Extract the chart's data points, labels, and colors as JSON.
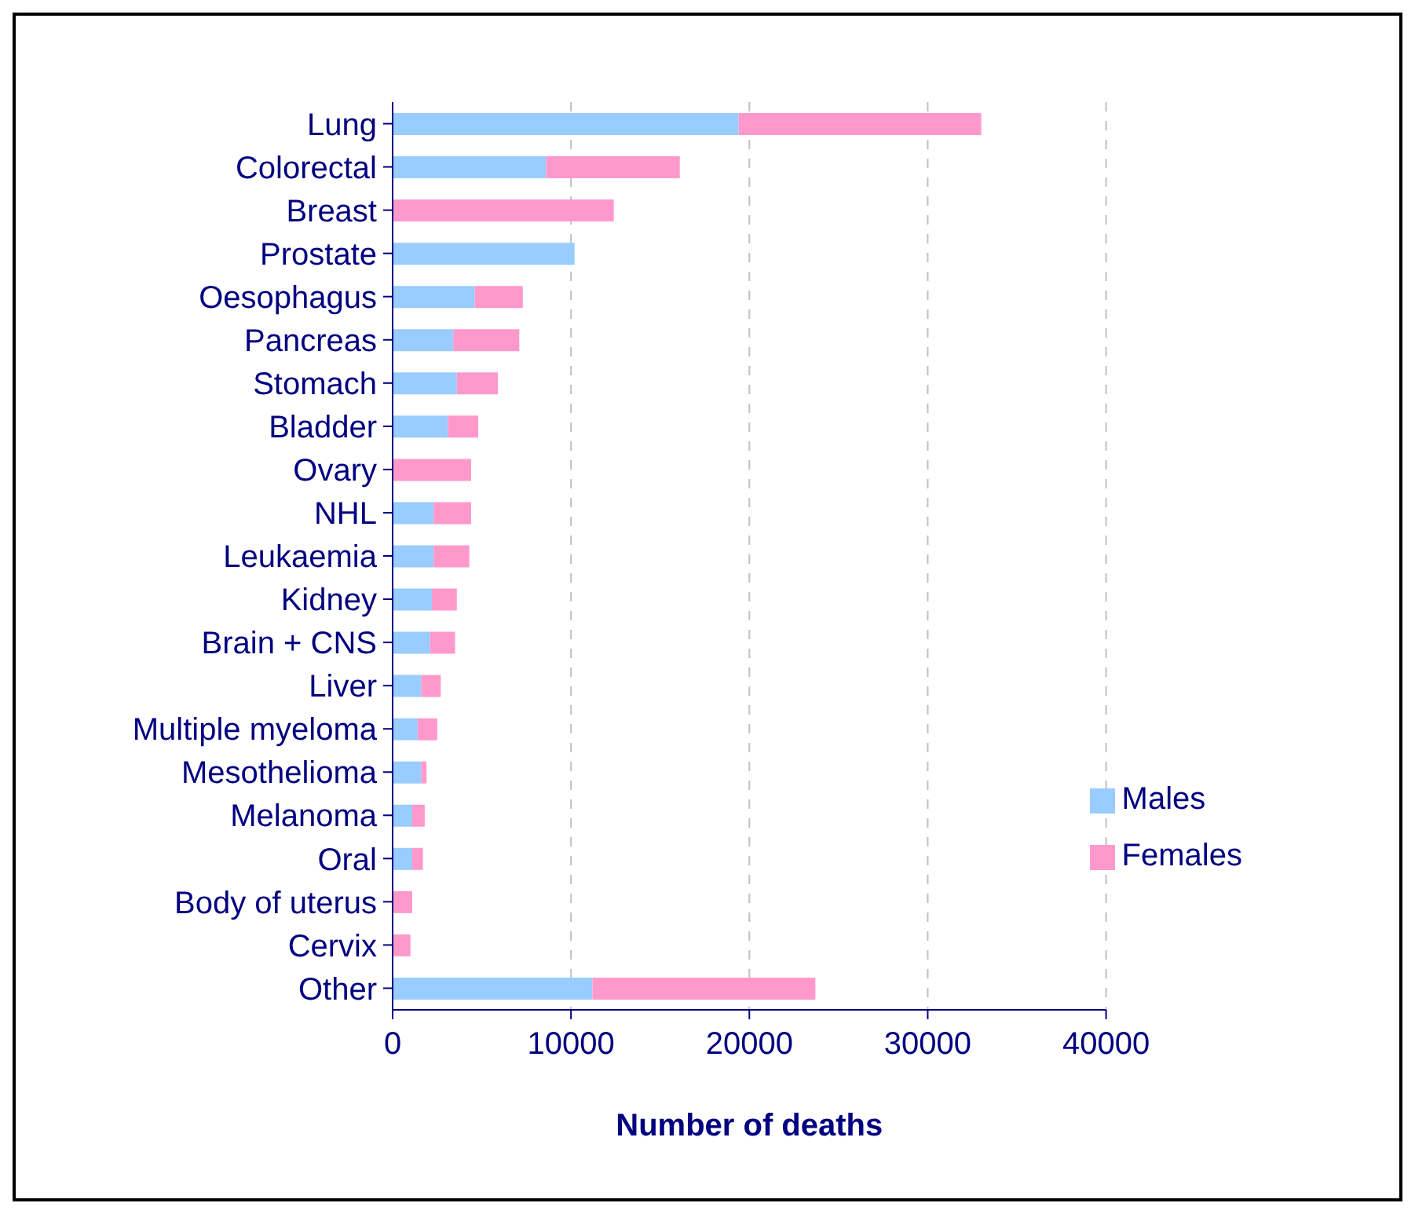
{
  "chart_data": {
    "type": "bar",
    "orientation": "horizontal",
    "stacked": true,
    "xlabel": "Number of deaths",
    "categories": [
      "Lung",
      "Colorectal",
      "Breast",
      "Prostate",
      "Oesophagus",
      "Pancreas",
      "Stomach",
      "Bladder",
      "Ovary",
      "NHL",
      "Leukaemia",
      "Kidney",
      "Brain + CNS",
      "Liver",
      "Multiple myeloma",
      "Mesothelioma",
      "Melanoma",
      "Oral",
      "Body of uterus",
      "Cervix",
      "Other"
    ],
    "series": [
      {
        "name": "Males",
        "color": "#99ccff",
        "values": [
          19400,
          8600,
          null,
          10200,
          4600,
          3400,
          3600,
          3100,
          null,
          2300,
          2300,
          2200,
          2100,
          1600,
          1400,
          1600,
          1100,
          1100,
          null,
          null,
          11200
        ]
      },
      {
        "name": "Females",
        "color": "#ff99cc",
        "values": [
          13600,
          7500,
          12400,
          null,
          2700,
          3700,
          2300,
          1700,
          4400,
          2100,
          2000,
          1400,
          1400,
          1100,
          1100,
          300,
          700,
          600,
          1100,
          1000,
          12500
        ]
      }
    ],
    "xlim": [
      0,
      40000
    ],
    "xticks": [
      0,
      10000,
      20000,
      30000,
      40000
    ],
    "grid": "x",
    "legend": "bottom right"
  }
}
